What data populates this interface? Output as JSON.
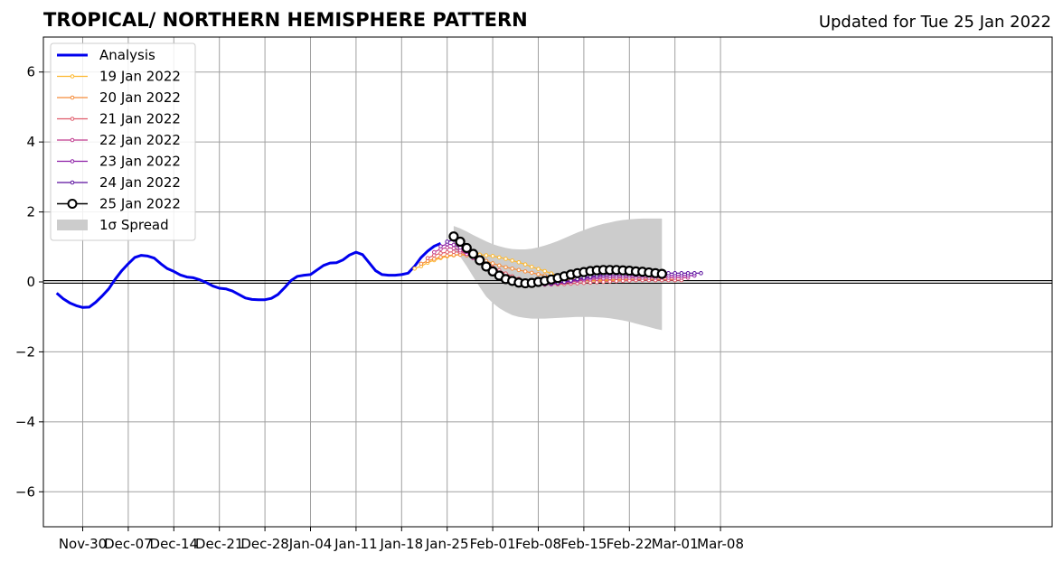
{
  "header": {
    "title": "TROPICAL/ NORTHERN HEMISPHERE PATTERN",
    "updated": "Updated for Tue 25 Jan 2022"
  },
  "chart_data": {
    "type": "line",
    "ylim": [
      -7,
      7
    ],
    "xlim_days_from_2021_11_30": [
      -6,
      149
    ],
    "yticks": [
      -6,
      -4,
      -2,
      0,
      2,
      4,
      6
    ],
    "ytick_labels": [
      "−6",
      "−4",
      "−2",
      "0",
      "2",
      "4",
      "6"
    ],
    "xticks": [
      "Nov-30",
      "Dec-07",
      "Dec-14",
      "Dec-21",
      "Dec-28",
      "Jan-04",
      "Jan-11",
      "Jan-18",
      "Jan-25",
      "Feb-01",
      "Feb-08",
      "Feb-15",
      "Feb-22",
      "Mar-01",
      "Mar-08"
    ],
    "grid": true,
    "zero_line": true,
    "legend_position": "upper-left",
    "legend": [
      "Analysis",
      "19 Jan 2022",
      "20 Jan 2022",
      "21 Jan 2022",
      "22 Jan 2022",
      "23 Jan 2022",
      "24 Jan 2022",
      "25 Jan 2022",
      "1σ Spread"
    ],
    "colors": {
      "analysis": "#0000ee",
      "19 Jan 2022": "#fdb82f",
      "20 Jan 2022": "#f58c3a",
      "21 Jan 2022": "#e05a6a",
      "22 Jan 2022": "#c13a8e",
      "23 Jan 2022": "#8d1fa6",
      "24 Jan 2022": "#5a0f9e",
      "25 Jan 2022": "#000000",
      "spread": "#cccccc",
      "grid": "#a0a0a0"
    },
    "analysis": {
      "name": "Analysis",
      "dates": [
        "2021-11-26",
        "2021-11-27",
        "2021-11-28",
        "2021-11-29",
        "2021-11-30",
        "2021-12-01",
        "2021-12-02",
        "2021-12-03",
        "2021-12-04",
        "2021-12-05",
        "2021-12-06",
        "2021-12-07",
        "2021-12-08",
        "2021-12-09",
        "2021-12-10",
        "2021-12-11",
        "2021-12-12",
        "2021-12-13",
        "2021-12-14",
        "2021-12-15",
        "2021-12-16",
        "2021-12-17",
        "2021-12-18",
        "2021-12-19",
        "2021-12-20",
        "2021-12-21",
        "2021-12-22",
        "2021-12-23",
        "2021-12-24",
        "2021-12-25",
        "2021-12-26",
        "2021-12-27",
        "2021-12-28",
        "2021-12-29",
        "2021-12-30",
        "2021-12-31",
        "2022-01-01",
        "2022-01-02",
        "2022-01-03",
        "2022-01-04",
        "2022-01-05",
        "2022-01-06",
        "2022-01-07",
        "2022-01-08",
        "2022-01-09",
        "2022-01-10",
        "2022-01-11",
        "2022-01-12",
        "2022-01-13",
        "2022-01-14",
        "2022-01-15",
        "2022-01-16",
        "2022-01-17",
        "2022-01-18",
        "2022-01-19",
        "2022-01-20",
        "2022-01-21",
        "2022-01-22",
        "2022-01-23",
        "2022-01-24"
      ],
      "values": [
        -0.32,
        -0.48,
        -0.6,
        -0.68,
        -0.73,
        -0.72,
        -0.58,
        -0.4,
        -0.2,
        0.08,
        0.32,
        0.52,
        0.7,
        0.76,
        0.74,
        0.68,
        0.52,
        0.38,
        0.3,
        0.2,
        0.14,
        0.12,
        0.06,
        -0.02,
        -0.12,
        -0.18,
        -0.2,
        -0.26,
        -0.36,
        -0.46,
        -0.5,
        -0.51,
        -0.51,
        -0.47,
        -0.36,
        -0.17,
        0.04,
        0.16,
        0.19,
        0.21,
        0.34,
        0.47,
        0.54,
        0.55,
        0.63,
        0.77,
        0.85,
        0.78,
        0.55,
        0.32,
        0.21,
        0.19,
        0.19,
        0.21,
        0.25,
        0.45,
        0.7,
        0.88,
        1.02,
        1.1
      ]
    },
    "forecasts": [
      {
        "name": "19 Jan 2022",
        "start": "2022-01-20",
        "values": [
          0.38,
          0.45,
          0.55,
          0.62,
          0.68,
          0.73,
          0.76,
          0.78,
          0.79,
          0.79,
          0.78,
          0.76,
          0.74,
          0.7,
          0.66,
          0.61,
          0.56,
          0.5,
          0.43,
          0.37,
          0.31,
          0.24,
          0.18,
          0.13,
          0.09,
          0.06,
          0.04,
          0.03,
          0.03,
          0.03,
          0.03,
          0.04,
          0.05,
          0.06,
          0.06,
          0.06,
          0.06,
          0.06,
          0.06,
          0.06
        ]
      },
      {
        "name": "20 Jan 2022",
        "start": "2022-01-21",
        "values": [
          0.52,
          0.6,
          0.66,
          0.71,
          0.75,
          0.77,
          0.78,
          0.76,
          0.72,
          0.66,
          0.6,
          0.53,
          0.47,
          0.42,
          0.38,
          0.34,
          0.3,
          0.26,
          0.22,
          0.18,
          0.14,
          0.1,
          0.07,
          0.05,
          0.04,
          0.04,
          0.04,
          0.05,
          0.06,
          0.06,
          0.07,
          0.07,
          0.07,
          0.07,
          0.07,
          0.07,
          0.07,
          0.07,
          0.07,
          0.07
        ]
      },
      {
        "name": "21 Jan 2022",
        "start": "2022-01-22",
        "values": [
          0.68,
          0.76,
          0.82,
          0.85,
          0.86,
          0.85,
          0.8,
          0.72,
          0.62,
          0.52,
          0.42,
          0.33,
          0.24,
          0.16,
          0.09,
          0.03,
          -0.01,
          -0.04,
          -0.06,
          -0.07,
          -0.07,
          -0.06,
          -0.05,
          -0.04,
          -0.03,
          -0.02,
          -0.01,
          0.0,
          0.01,
          0.02,
          0.03,
          0.04,
          0.05,
          0.05,
          0.05,
          0.05,
          0.05,
          0.05,
          0.05,
          0.05
        ]
      },
      {
        "name": "22 Jan 2022",
        "start": "2022-01-23",
        "values": [
          0.85,
          0.94,
          0.98,
          0.96,
          0.9,
          0.8,
          0.68,
          0.55,
          0.42,
          0.31,
          0.21,
          0.12,
          0.05,
          0.0,
          -0.04,
          -0.07,
          -0.08,
          -0.08,
          -0.07,
          -0.05,
          -0.02,
          0.0,
          0.03,
          0.05,
          0.07,
          0.09,
          0.1,
          0.11,
          0.12,
          0.12,
          0.12,
          0.12,
          0.12,
          0.12,
          0.12,
          0.12,
          0.12,
          0.12,
          0.12,
          0.12
        ]
      },
      {
        "name": "23 Jan 2022",
        "start": "2022-01-24",
        "values": [
          1.02,
          1.08,
          1.06,
          0.98,
          0.86,
          0.72,
          0.58,
          0.44,
          0.32,
          0.21,
          0.12,
          0.05,
          0.0,
          -0.03,
          -0.05,
          -0.06,
          -0.06,
          -0.05,
          -0.03,
          0.0,
          0.03,
          0.06,
          0.09,
          0.12,
          0.14,
          0.16,
          0.17,
          0.18,
          0.18,
          0.18,
          0.18,
          0.18,
          0.18,
          0.18,
          0.18,
          0.18,
          0.18,
          0.18,
          0.18,
          0.18
        ]
      },
      {
        "name": "24 Jan 2022",
        "start": "2022-01-25",
        "values": [
          1.15,
          1.2,
          1.1,
          0.95,
          0.78,
          0.62,
          0.48,
          0.36,
          0.25,
          0.16,
          0.08,
          0.02,
          -0.02,
          -0.05,
          -0.06,
          -0.06,
          -0.05,
          -0.03,
          0.0,
          0.04,
          0.08,
          0.12,
          0.15,
          0.18,
          0.21,
          0.23,
          0.24,
          0.25,
          0.25,
          0.25,
          0.25,
          0.25,
          0.25,
          0.25,
          0.25,
          0.25,
          0.25,
          0.25,
          0.25,
          0.25
        ]
      },
      {
        "name": "25 Jan 2022",
        "start": "2022-01-26",
        "values": [
          1.3,
          1.15,
          0.97,
          0.8,
          0.62,
          0.44,
          0.3,
          0.18,
          0.08,
          0.03,
          -0.02,
          -0.04,
          -0.03,
          0.0,
          0.03,
          0.07,
          0.11,
          0.16,
          0.21,
          0.25,
          0.28,
          0.31,
          0.33,
          0.34,
          0.34,
          0.34,
          0.33,
          0.32,
          0.3,
          0.29,
          0.27,
          0.25,
          0.23
        ]
      }
    ],
    "spread": {
      "name": "1σ Spread",
      "start": "2022-01-26",
      "upper": [
        1.6,
        1.53,
        1.44,
        1.34,
        1.25,
        1.16,
        1.08,
        1.02,
        0.97,
        0.94,
        0.93,
        0.93,
        0.95,
        0.99,
        1.04,
        1.1,
        1.17,
        1.25,
        1.33,
        1.41,
        1.48,
        1.55,
        1.61,
        1.66,
        1.7,
        1.74,
        1.77,
        1.79,
        1.8,
        1.81,
        1.81,
        1.81,
        1.81
      ],
      "lower": [
        0.97,
        0.72,
        0.45,
        0.15,
        -0.15,
        -0.42,
        -0.6,
        -0.75,
        -0.86,
        -0.95,
        -1.0,
        -1.03,
        -1.05,
        -1.05,
        -1.05,
        -1.04,
        -1.03,
        -1.02,
        -1.01,
        -1.0,
        -1.0,
        -1.0,
        -1.01,
        -1.02,
        -1.04,
        -1.07,
        -1.1,
        -1.14,
        -1.19,
        -1.24,
        -1.29,
        -1.34,
        -1.38
      ]
    }
  }
}
